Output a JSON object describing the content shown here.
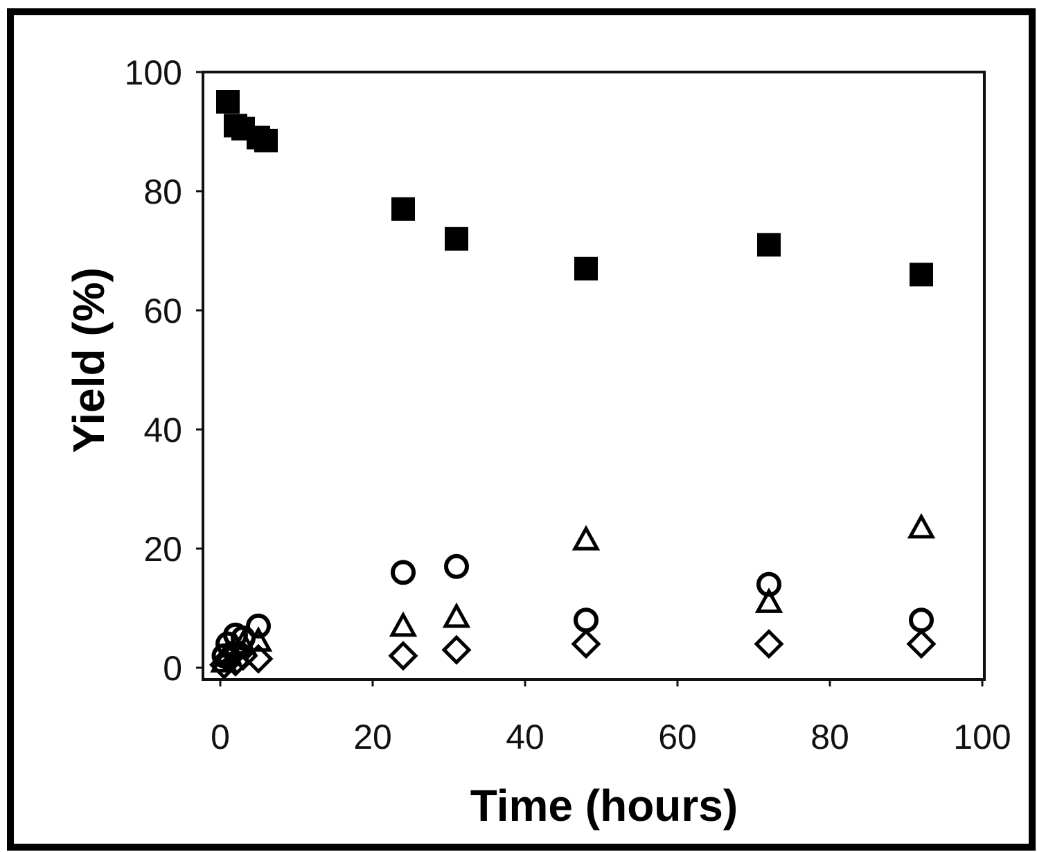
{
  "chart_data": {
    "type": "scatter",
    "xlabel": "Time (hours)",
    "ylabel": "Yield (%)",
    "xlim": [
      0,
      100
    ],
    "ylim": [
      0,
      100
    ],
    "xticks": [
      0,
      20,
      40,
      60,
      80,
      100
    ],
    "yticks": [
      0,
      20,
      40,
      60,
      80,
      100
    ],
    "grid": false,
    "legend": "none",
    "series": [
      {
        "marker": "square-filled",
        "points": [
          [
            1,
            95
          ],
          [
            2,
            91
          ],
          [
            3,
            90.5
          ],
          [
            5,
            89
          ],
          [
            6,
            88.5
          ],
          [
            24,
            77
          ],
          [
            31,
            72
          ],
          [
            48,
            67
          ],
          [
            72,
            71
          ],
          [
            92,
            66
          ]
        ]
      },
      {
        "marker": "circle-open",
        "points": [
          [
            0.5,
            2
          ],
          [
            1,
            4
          ],
          [
            2,
            5.5
          ],
          [
            3,
            5
          ],
          [
            5,
            7
          ],
          [
            24,
            16
          ],
          [
            31,
            17
          ],
          [
            48,
            8
          ],
          [
            72,
            14
          ],
          [
            92,
            8
          ]
        ]
      },
      {
        "marker": "triangle-open",
        "points": [
          [
            0.5,
            1
          ],
          [
            1,
            2.5
          ],
          [
            2,
            3.5
          ],
          [
            3,
            4
          ],
          [
            5,
            4.5
          ],
          [
            24,
            7
          ],
          [
            31,
            8.5
          ],
          [
            48,
            21.5
          ],
          [
            72,
            11
          ],
          [
            92,
            23.5
          ]
        ]
      },
      {
        "marker": "diamond-open",
        "points": [
          [
            0.5,
            0.5
          ],
          [
            1,
            1.5
          ],
          [
            2,
            1
          ],
          [
            3,
            2
          ],
          [
            5,
            1.5
          ],
          [
            24,
            2
          ],
          [
            31,
            3
          ],
          [
            48,
            4
          ],
          [
            72,
            4
          ],
          [
            92,
            4
          ]
        ]
      }
    ]
  }
}
